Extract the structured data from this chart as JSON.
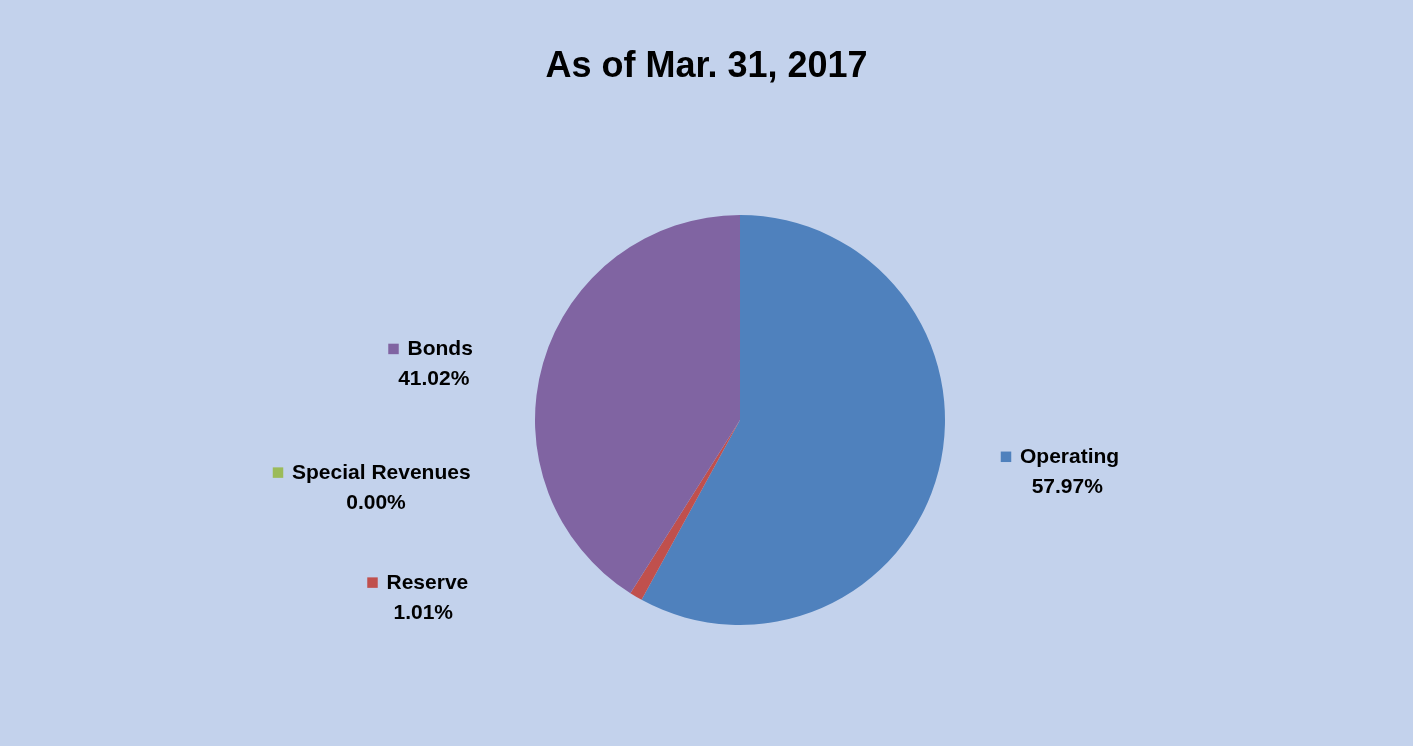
{
  "chart_data": {
    "type": "pie",
    "title": "As of Mar. 31, 2017",
    "categories": [
      "Operating",
      "Reserve",
      "Special Revenues",
      "Bonds"
    ],
    "values": [
      57.97,
      1.01,
      0.0,
      41.02
    ],
    "value_labels": [
      "57.97%",
      "1.01%",
      "0.00%",
      "41.02%"
    ],
    "colors": [
      "#4f81bd",
      "#c0504d",
      "#9bbb59",
      "#8064a2"
    ],
    "legend": "left"
  }
}
